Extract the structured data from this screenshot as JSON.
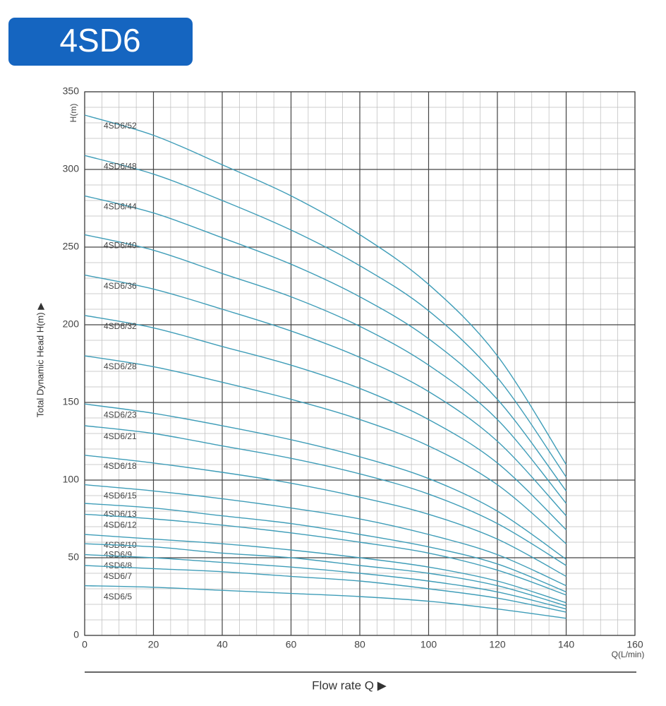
{
  "chart_data": {
    "type": "line",
    "title": "4SD6",
    "y_label": "Total Dynamic Head H(m) ▶",
    "y_unit": "H(m)",
    "x_unit": "Q(L/min)",
    "x_label": "Flow  rate Q ▶",
    "x": [
      0,
      20,
      40,
      60,
      80,
      100,
      120,
      140
    ],
    "xlim": [
      0,
      160
    ],
    "xticks": [
      0,
      20,
      40,
      60,
      80,
      100,
      120,
      140,
      160
    ],
    "ylim": [
      0,
      350
    ],
    "yticks": [
      0,
      50,
      100,
      150,
      200,
      250,
      300,
      350
    ],
    "grid": true,
    "line_color": "#3f9db8",
    "series": [
      {
        "name": "4SD6/52",
        "values": [
          335,
          322,
          303,
          283,
          258,
          226,
          180,
          110
        ]
      },
      {
        "name": "4SD6/48",
        "values": [
          309,
          297,
          280,
          261,
          238,
          209,
          166,
          102
        ]
      },
      {
        "name": "4SD6/44",
        "values": [
          283,
          272,
          256,
          239,
          218,
          191,
          152,
          93
        ]
      },
      {
        "name": "4SD6/40",
        "values": [
          258,
          248,
          233,
          218,
          199,
          174,
          139,
          85
        ]
      },
      {
        "name": "4SD6/36",
        "values": [
          232,
          223,
          210,
          196,
          179,
          157,
          125,
          77
        ]
      },
      {
        "name": "4SD6/32",
        "values": [
          206,
          198,
          186,
          174,
          159,
          139,
          111,
          68
        ]
      },
      {
        "name": "4SD6/28",
        "values": [
          180,
          173,
          163,
          152,
          139,
          122,
          97,
          59
        ]
      },
      {
        "name": "4SD6/23",
        "values": [
          149,
          143,
          135,
          126,
          115,
          101,
          80,
          49
        ]
      },
      {
        "name": "4SD6/21",
        "values": [
          135,
          130,
          122,
          114,
          104,
          91,
          72,
          45
        ]
      },
      {
        "name": "4SD6/18",
        "values": [
          116,
          111,
          105,
          98,
          89,
          78,
          62,
          38
        ]
      },
      {
        "name": "4SD6/15",
        "values": [
          97,
          93,
          88,
          82,
          75,
          65,
          52,
          32
        ]
      },
      {
        "name": "4SD6/13",
        "values": [
          85,
          82,
          77,
          72,
          65,
          57,
          46,
          28
        ]
      },
      {
        "name": "4SD6/12",
        "values": [
          78,
          75,
          71,
          66,
          60,
          53,
          42,
          26
        ]
      },
      {
        "name": "4SD6/10",
        "values": [
          65,
          62,
          59,
          55,
          50,
          44,
          35,
          21
        ]
      },
      {
        "name": "4SD6/9",
        "values": [
          59,
          57,
          53,
          50,
          45,
          40,
          32,
          19
        ]
      },
      {
        "name": "4SD6/8",
        "values": [
          52,
          50,
          47,
          44,
          40,
          35,
          28,
          17
        ]
      },
      {
        "name": "4SD6/7",
        "values": [
          45,
          43,
          41,
          38,
          35,
          30,
          24,
          15
        ]
      },
      {
        "name": "4SD6/5",
        "values": [
          32,
          31,
          29,
          27,
          25,
          22,
          17,
          11
        ]
      }
    ]
  }
}
